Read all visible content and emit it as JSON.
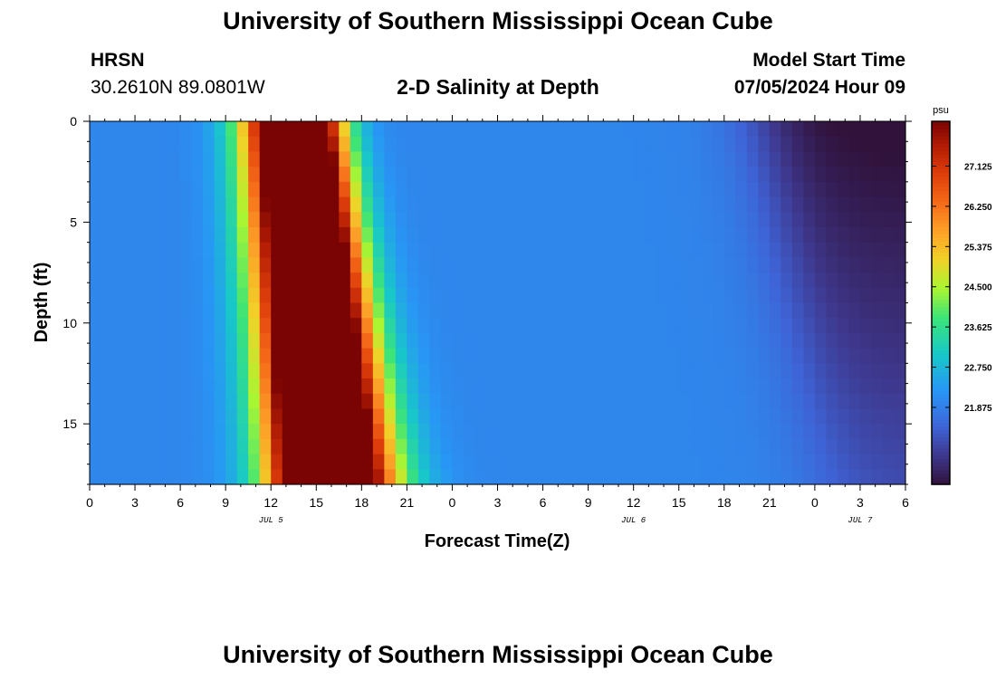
{
  "header": {
    "title": "University of Southern Mississippi Ocean Cube",
    "station": "HRSN",
    "coords": "30.2610N  89.0801W",
    "plot_title": "2-D Salinity at Depth",
    "start_label": "Model Start Time",
    "start_value": "07/05/2024 Hour 09"
  },
  "footer": {
    "title": "University of Southern Mississippi Ocean Cube"
  },
  "chart_data": {
    "type": "heatmap",
    "xlabel": "Forecast Time(Z)",
    "ylabel": "Depth (ft)",
    "xlim": [
      0,
      54
    ],
    "ylim": [
      0,
      18
    ],
    "x_tick_values": [
      0,
      3,
      6,
      9,
      12,
      15,
      18,
      21,
      24,
      27,
      30,
      33,
      36,
      39,
      42,
      45,
      48,
      51,
      54
    ],
    "x_tick_labels": [
      "0",
      "3",
      "6",
      "9",
      "12",
      "15",
      "18",
      "21",
      "0",
      "3",
      "6",
      "9",
      "12",
      "15",
      "18",
      "21",
      "0",
      "3",
      "6"
    ],
    "y_tick_values": [
      0,
      5,
      10,
      15
    ],
    "y_tick_labels": [
      "0",
      "5",
      "10",
      "15"
    ],
    "date_labels": [
      {
        "x": 12,
        "label": "JUL 5"
      },
      {
        "x": 36,
        "label": "JUL 6"
      },
      {
        "x": 51,
        "label": "JUL 7"
      }
    ],
    "colorbar": {
      "unit": "psu",
      "min": 20.2,
      "max": 28.1,
      "ticks": [
        21.875,
        22.75,
        23.625,
        24.5,
        25.375,
        26.25,
        27.125
      ],
      "tick_labels": [
        "21.875",
        "22.750",
        "23.625",
        "24.500",
        "25.375",
        "26.250",
        "27.125"
      ]
    },
    "time_bins": 72,
    "depth_bins": 24
  }
}
